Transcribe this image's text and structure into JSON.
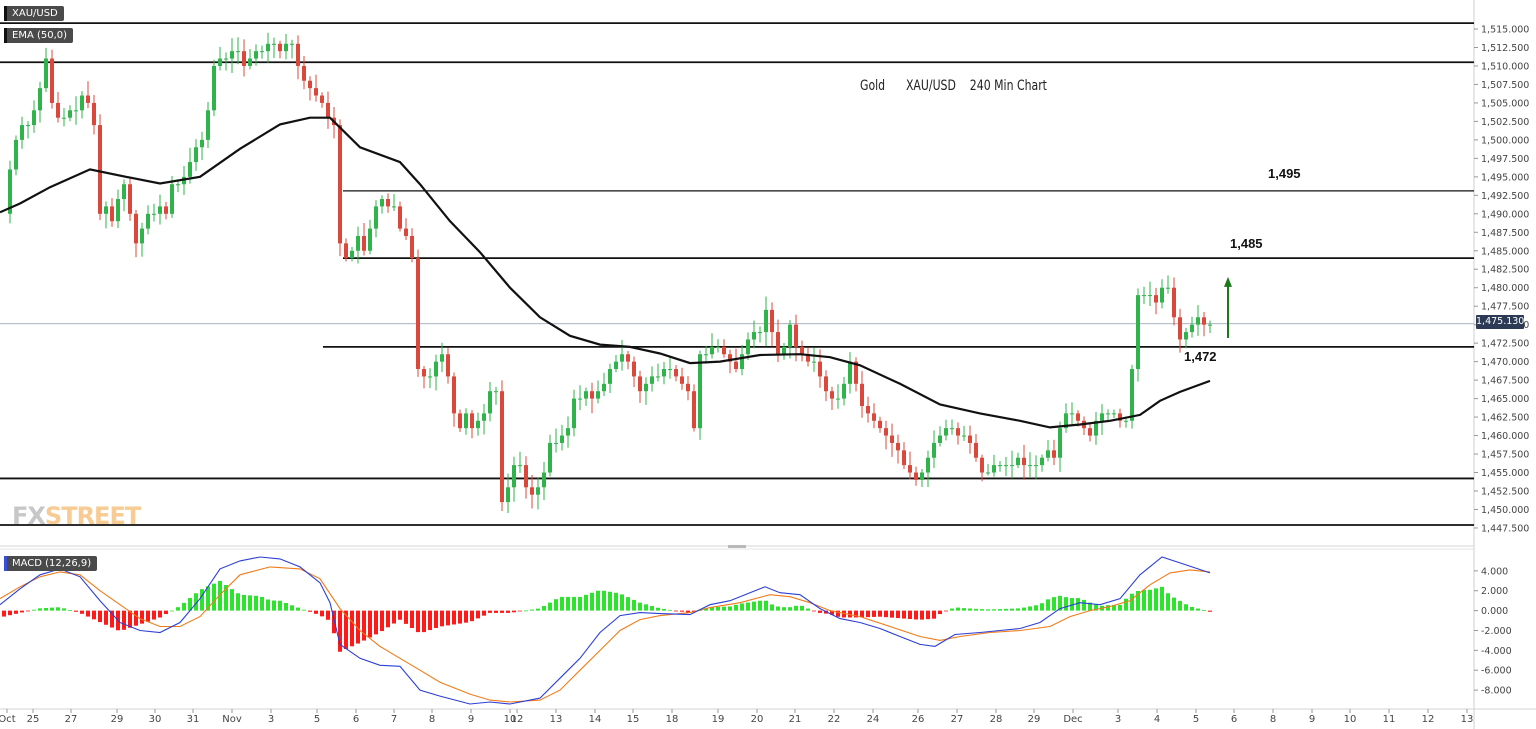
{
  "chart_data": {
    "type": "candlestick",
    "symbol": "XAU/USD",
    "indicator_label": "EMA (50,0)",
    "macd_label": "MACD (12,26,9)",
    "title_parts": [
      "Gold",
      "XAU/USD",
      "240 Min Chart"
    ],
    "current_price": "1,475.130",
    "price_axis": {
      "min": 1445.6,
      "max": 1517.3,
      "ticks": [
        1447.5,
        1450,
        1452.5,
        1455,
        1457.5,
        1460,
        1462.5,
        1465,
        1467.5,
        1470,
        1472.5,
        1475,
        1477.5,
        1480,
        1482.5,
        1485,
        1487.5,
        1490,
        1492.5,
        1495,
        1497.5,
        1500,
        1502.5,
        1505,
        1507.5,
        1510,
        1512.5,
        1515
      ],
      "tick_labels": [
        "1,447.500",
        "1,450.000",
        "1,452.500",
        "1,455.000",
        "1,457.500",
        "1,460.000",
        "1,462.500",
        "1,465.000",
        "1,467.500",
        "1,470.000",
        "1,472.500",
        "1,475.000",
        "1,477.500",
        "1,480.000",
        "1,482.500",
        "1,485.000",
        "1,487.500",
        "1,490.000",
        "1,492.500",
        "1,495.000",
        "1,497.500",
        "1,500.000",
        "1,502.500",
        "1,505.000",
        "1,507.500",
        "1,510.000",
        "1,512.500",
        "1,515.000"
      ]
    },
    "macd_axis": {
      "min": -9.8,
      "max": 6.0,
      "ticks": [
        4,
        2,
        0,
        -2,
        -4,
        -6,
        -8
      ],
      "tick_labels": [
        "4.000",
        "2.000",
        "0.000",
        "-2.000",
        "-4.000",
        "-6.000",
        "-8.000"
      ]
    },
    "date_labels": [
      "Oct",
      "25",
      "27",
      "29",
      "30",
      "31",
      "Nov",
      "3",
      "5",
      "6",
      "7",
      "8",
      "9",
      "10",
      "12",
      "13",
      "14",
      "15",
      "18",
      "19",
      "20",
      "21",
      "22",
      "24",
      "26",
      "27",
      "28",
      "29",
      "Dec",
      "3",
      "4",
      "5",
      "6",
      "8",
      "9",
      "10",
      "11",
      "12",
      "13"
    ],
    "date_label_positions": [
      7,
      33,
      71,
      117,
      155,
      193,
      232,
      271,
      317,
      356,
      394,
      432,
      471,
      510,
      517,
      556,
      595,
      633,
      672,
      718,
      757,
      795,
      834,
      873,
      918,
      957,
      996,
      1034,
      1073,
      1118,
      1157,
      1196,
      1234,
      1273,
      1312,
      1350,
      1389,
      1428,
      1467
    ],
    "levels": [
      {
        "label": "1,495",
        "price": 1493.1
      },
      {
        "label": "1,485",
        "price": 1484.0
      },
      {
        "label": "1,472",
        "price": 1472.0
      }
    ],
    "horizontal_lines": [
      1515.8,
      1510.5,
      1454.2,
      1447.9
    ],
    "arrow": {
      "from": 1473.2,
      "to": 1481.2,
      "color": "#1a7a1a"
    },
    "candles_close_path": [
      [
        4,
        1490
      ],
      [
        10,
        1496
      ],
      [
        16,
        1500
      ],
      [
        22,
        1502
      ],
      [
        28,
        1502
      ],
      [
        34,
        1504
      ],
      [
        40,
        1507
      ],
      [
        46,
        1511
      ],
      [
        52,
        1505
      ],
      [
        58,
        1503
      ],
      [
        64,
        1503
      ],
      [
        70,
        1504
      ],
      [
        76,
        1504
      ],
      [
        82,
        1506
      ],
      [
        88,
        1505
      ],
      [
        94,
        1502
      ],
      [
        100,
        1490
      ],
      [
        106,
        1491
      ],
      [
        112,
        1489
      ],
      [
        118,
        1492
      ],
      [
        124,
        1494
      ],
      [
        130,
        1490
      ],
      [
        136,
        1486
      ],
      [
        142,
        1488
      ],
      [
        148,
        1490
      ],
      [
        154,
        1490
      ],
      [
        160,
        1491
      ],
      [
        166,
        1490
      ],
      [
        172,
        1494
      ],
      [
        178,
        1494
      ],
      [
        184,
        1495
      ],
      [
        190,
        1497
      ],
      [
        196,
        1499
      ],
      [
        202,
        1500
      ],
      [
        208,
        1504
      ],
      [
        214,
        1510
      ],
      [
        220,
        1511
      ],
      [
        226,
        1511
      ],
      [
        232,
        1512
      ],
      [
        238,
        1512
      ],
      [
        244,
        1510
      ],
      [
        250,
        1511
      ],
      [
        256,
        1512
      ],
      [
        262,
        1512
      ],
      [
        268,
        1513
      ],
      [
        274,
        1513
      ],
      [
        280,
        1512
      ],
      [
        286,
        1513
      ],
      [
        292,
        1513
      ],
      [
        298,
        1510
      ],
      [
        304,
        1508
      ],
      [
        310,
        1507
      ],
      [
        316,
        1506
      ],
      [
        322,
        1505
      ],
      [
        328,
        1503
      ],
      [
        334,
        1502
      ],
      [
        340,
        1486
      ],
      [
        346,
        1484
      ],
      [
        352,
        1485
      ],
      [
        358,
        1487
      ],
      [
        364,
        1485
      ],
      [
        370,
        1488
      ],
      [
        376,
        1491
      ],
      [
        382,
        1492
      ],
      [
        388,
        1491
      ],
      [
        394,
        1491
      ],
      [
        400,
        1488
      ],
      [
        406,
        1487
      ],
      [
        412,
        1484
      ],
      [
        418,
        1469
      ],
      [
        424,
        1468
      ],
      [
        430,
        1468
      ],
      [
        436,
        1470
      ],
      [
        442,
        1471
      ],
      [
        448,
        1468
      ],
      [
        454,
        1463
      ],
      [
        460,
        1461
      ],
      [
        466,
        1463
      ],
      [
        472,
        1461
      ],
      [
        478,
        1462
      ],
      [
        484,
        1463
      ],
      [
        490,
        1466
      ],
      [
        496,
        1466
      ],
      [
        502,
        1451
      ],
      [
        508,
        1453
      ],
      [
        514,
        1456
      ],
      [
        520,
        1456
      ],
      [
        526,
        1453
      ],
      [
        532,
        1452
      ],
      [
        538,
        1453
      ],
      [
        544,
        1455
      ],
      [
        550,
        1459
      ],
      [
        556,
        1459
      ],
      [
        562,
        1460
      ],
      [
        568,
        1461
      ],
      [
        574,
        1465
      ],
      [
        580,
        1465
      ],
      [
        586,
        1466
      ],
      [
        592,
        1465
      ],
      [
        598,
        1466
      ],
      [
        604,
        1467
      ],
      [
        610,
        1469
      ],
      [
        616,
        1470
      ],
      [
        622,
        1471
      ],
      [
        628,
        1470
      ],
      [
        634,
        1468
      ],
      [
        640,
        1466
      ],
      [
        646,
        1467
      ],
      [
        652,
        1468
      ],
      [
        658,
        1468
      ],
      [
        664,
        1469
      ],
      [
        670,
        1469
      ],
      [
        676,
        1468
      ],
      [
        682,
        1467
      ],
      [
        688,
        1466
      ],
      [
        694,
        1461
      ],
      [
        700,
        1471
      ],
      [
        706,
        1471
      ],
      [
        712,
        1472
      ],
      [
        718,
        1472
      ],
      [
        724,
        1471
      ],
      [
        730,
        1470
      ],
      [
        736,
        1469
      ],
      [
        742,
        1471
      ],
      [
        748,
        1473
      ],
      [
        754,
        1474
      ],
      [
        760,
        1474
      ],
      [
        766,
        1477
      ],
      [
        772,
        1474
      ],
      [
        778,
        1471
      ],
      [
        784,
        1472
      ],
      [
        790,
        1475
      ],
      [
        796,
        1472
      ],
      [
        802,
        1471
      ],
      [
        808,
        1470
      ],
      [
        814,
        1470
      ],
      [
        820,
        1468
      ],
      [
        826,
        1466
      ],
      [
        832,
        1465
      ],
      [
        838,
        1465
      ],
      [
        844,
        1467
      ],
      [
        850,
        1470
      ],
      [
        856,
        1467
      ],
      [
        862,
        1464
      ],
      [
        868,
        1463
      ],
      [
        874,
        1462
      ],
      [
        880,
        1461
      ],
      [
        886,
        1460
      ],
      [
        892,
        1459
      ],
      [
        898,
        1458
      ],
      [
        904,
        1456
      ],
      [
        910,
        1455
      ],
      [
        916,
        1454
      ],
      [
        922,
        1455
      ],
      [
        928,
        1457
      ],
      [
        934,
        1459
      ],
      [
        940,
        1460
      ],
      [
        946,
        1461
      ],
      [
        952,
        1461
      ],
      [
        958,
        1460
      ],
      [
        964,
        1460
      ],
      [
        970,
        1459
      ],
      [
        976,
        1457
      ],
      [
        982,
        1455
      ],
      [
        988,
        1455
      ],
      [
        994,
        1456
      ],
      [
        1000,
        1456
      ],
      [
        1006,
        1456
      ],
      [
        1012,
        1456
      ],
      [
        1018,
        1457
      ],
      [
        1024,
        1456
      ],
      [
        1030,
        1456
      ],
      [
        1036,
        1456
      ],
      [
        1042,
        1457
      ],
      [
        1048,
        1458
      ],
      [
        1054,
        1457
      ],
      [
        1060,
        1461
      ],
      [
        1066,
        1463
      ],
      [
        1072,
        1463
      ],
      [
        1078,
        1462
      ],
      [
        1084,
        1461
      ],
      [
        1090,
        1460
      ],
      [
        1096,
        1462
      ],
      [
        1102,
        1463
      ],
      [
        1108,
        1463
      ],
      [
        1114,
        1463
      ],
      [
        1120,
        1462
      ],
      [
        1126,
        1462
      ],
      [
        1132,
        1469
      ],
      [
        1138,
        1479
      ],
      [
        1144,
        1479
      ],
      [
        1150,
        1479
      ],
      [
        1156,
        1478
      ],
      [
        1162,
        1480
      ],
      [
        1168,
        1480
      ],
      [
        1174,
        1476
      ],
      [
        1180,
        1473
      ],
      [
        1186,
        1474
      ],
      [
        1192,
        1475
      ],
      [
        1198,
        1476
      ],
      [
        1204,
        1475
      ],
      [
        1210,
        1475
      ]
    ],
    "ema_path": [
      [
        0,
        1490.2
      ],
      [
        20,
        1491.4
      ],
      [
        50,
        1493.6
      ],
      [
        90,
        1496.0
      ],
      [
        130,
        1494.9
      ],
      [
        160,
        1494.1
      ],
      [
        200,
        1495.0
      ],
      [
        240,
        1498.8
      ],
      [
        280,
        1502.1
      ],
      [
        310,
        1503.0
      ],
      [
        330,
        1503.0
      ],
      [
        360,
        1499.0
      ],
      [
        400,
        1497.0
      ],
      [
        420,
        1494.0
      ],
      [
        450,
        1489.0
      ],
      [
        480,
        1484.8
      ],
      [
        510,
        1480.0
      ],
      [
        540,
        1476.0
      ],
      [
        570,
        1473.5
      ],
      [
        600,
        1472.3
      ],
      [
        630,
        1472.0
      ],
      [
        660,
        1471.1
      ],
      [
        690,
        1469.8
      ],
      [
        720,
        1470.0
      ],
      [
        760,
        1470.9
      ],
      [
        800,
        1471.0
      ],
      [
        830,
        1470.6
      ],
      [
        860,
        1469.5
      ],
      [
        900,
        1467.0
      ],
      [
        940,
        1464.2
      ],
      [
        980,
        1463.0
      ],
      [
        1020,
        1462.0
      ],
      [
        1050,
        1461.1
      ],
      [
        1080,
        1461.5
      ],
      [
        1110,
        1462.0
      ],
      [
        1140,
        1462.8
      ],
      [
        1160,
        1464.7
      ],
      [
        1180,
        1465.9
      ],
      [
        1210,
        1467.4
      ]
    ],
    "macd_path": [
      [
        0,
        0.6
      ],
      [
        20,
        2.2
      ],
      [
        40,
        3.6
      ],
      [
        60,
        4.2
      ],
      [
        80,
        3.4
      ],
      [
        100,
        1.0
      ],
      [
        120,
        -1.2
      ],
      [
        140,
        -2.0
      ],
      [
        160,
        -2.2
      ],
      [
        180,
        -1.2
      ],
      [
        200,
        1.2
      ],
      [
        220,
        4.2
      ],
      [
        240,
        5.0
      ],
      [
        260,
        5.4
      ],
      [
        280,
        5.2
      ],
      [
        300,
        4.4
      ],
      [
        320,
        2.8
      ],
      [
        330,
        0.8
      ],
      [
        340,
        -3.4
      ],
      [
        360,
        -4.8
      ],
      [
        380,
        -5.5
      ],
      [
        400,
        -5.6
      ],
      [
        420,
        -8.0
      ],
      [
        440,
        -8.6
      ],
      [
        470,
        -9.4
      ],
      [
        490,
        -9.2
      ],
      [
        510,
        -9.4
      ],
      [
        540,
        -8.8
      ],
      [
        560,
        -6.8
      ],
      [
        580,
        -4.8
      ],
      [
        600,
        -2.2
      ],
      [
        620,
        -0.5
      ],
      [
        640,
        -0.2
      ],
      [
        660,
        -0.3
      ],
      [
        690,
        -0.4
      ],
      [
        710,
        0.6
      ],
      [
        730,
        1.0
      ],
      [
        750,
        1.8
      ],
      [
        765,
        2.4
      ],
      [
        780,
        1.8
      ],
      [
        800,
        1.6
      ],
      [
        820,
        0.2
      ],
      [
        840,
        -0.8
      ],
      [
        860,
        -1.2
      ],
      [
        880,
        -1.8
      ],
      [
        900,
        -2.6
      ],
      [
        920,
        -3.4
      ],
      [
        935,
        -3.6
      ],
      [
        955,
        -2.4
      ],
      [
        980,
        -2.2
      ],
      [
        1000,
        -2.0
      ],
      [
        1020,
        -1.8
      ],
      [
        1040,
        -1.2
      ],
      [
        1060,
        0.2
      ],
      [
        1080,
        0.8
      ],
      [
        1100,
        0.6
      ],
      [
        1120,
        1.2
      ],
      [
        1140,
        3.6
      ],
      [
        1162,
        5.4
      ],
      [
        1180,
        4.8
      ],
      [
        1210,
        3.8
      ]
    ],
    "signal_path": [
      [
        0,
        1.2
      ],
      [
        20,
        2.4
      ],
      [
        40,
        3.4
      ],
      [
        60,
        3.9
      ],
      [
        80,
        3.6
      ],
      [
        100,
        2.0
      ],
      [
        120,
        0.6
      ],
      [
        140,
        -0.8
      ],
      [
        160,
        -1.6
      ],
      [
        180,
        -1.6
      ],
      [
        200,
        -0.6
      ],
      [
        220,
        1.6
      ],
      [
        240,
        3.6
      ],
      [
        270,
        4.4
      ],
      [
        300,
        4.2
      ],
      [
        320,
        3.2
      ],
      [
        340,
        0.2
      ],
      [
        360,
        -2.0
      ],
      [
        380,
        -3.6
      ],
      [
        400,
        -4.8
      ],
      [
        420,
        -6.0
      ],
      [
        440,
        -7.2
      ],
      [
        470,
        -8.4
      ],
      [
        490,
        -9.0
      ],
      [
        510,
        -9.2
      ],
      [
        540,
        -9.0
      ],
      [
        560,
        -8.0
      ],
      [
        580,
        -6.0
      ],
      [
        600,
        -4.0
      ],
      [
        620,
        -2.0
      ],
      [
        640,
        -0.9
      ],
      [
        660,
        -0.5
      ],
      [
        690,
        -0.2
      ],
      [
        710,
        0.3
      ],
      [
        740,
        0.8
      ],
      [
        770,
        1.6
      ],
      [
        790,
        1.4
      ],
      [
        810,
        0.8
      ],
      [
        830,
        0.0
      ],
      [
        860,
        -0.6
      ],
      [
        890,
        -1.6
      ],
      [
        920,
        -2.6
      ],
      [
        940,
        -3.0
      ],
      [
        960,
        -2.6
      ],
      [
        990,
        -2.2
      ],
      [
        1020,
        -2.0
      ],
      [
        1050,
        -1.6
      ],
      [
        1070,
        -0.6
      ],
      [
        1090,
        0.0
      ],
      [
        1110,
        0.4
      ],
      [
        1130,
        1.0
      ],
      [
        1150,
        2.6
      ],
      [
        1170,
        3.8
      ],
      [
        1190,
        4.1
      ],
      [
        1210,
        3.9
      ]
    ],
    "histogram_green": "#2ee32e",
    "histogram_red": "#ff1a1a",
    "macd_color": "#2b3fd6",
    "signal_color": "#f07c1a",
    "ema_color": "#111111",
    "up_color": "#2fb34a",
    "down_color": "#d9483b"
  },
  "logo": {
    "part1": "FX",
    "part2": "STREET"
  }
}
